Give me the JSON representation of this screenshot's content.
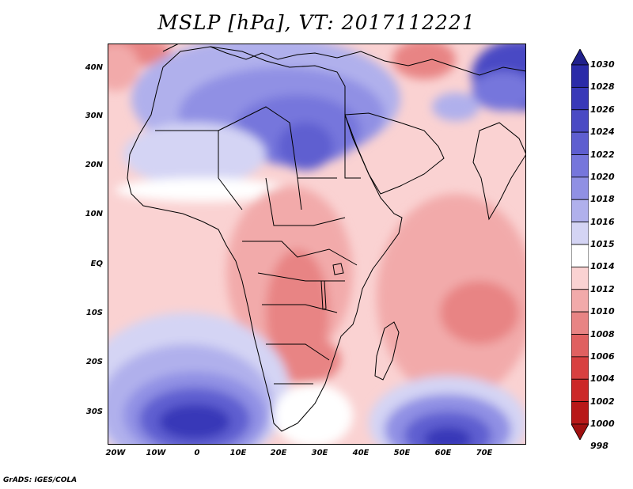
{
  "title": "MSLP [hPa], VT: 2017112221",
  "credit": "GrADS: IGES/COLA",
  "lat_labels": [
    "40N",
    "30N",
    "20N",
    "10N",
    "EQ",
    "10S",
    "20S",
    "30S"
  ],
  "lon_labels": [
    "20W",
    "10W",
    "0",
    "10E",
    "20E",
    "30E",
    "40E",
    "50E",
    "60E",
    "70E"
  ],
  "colorbar": {
    "levels": [
      "1030",
      "1028",
      "1026",
      "1024",
      "1022",
      "1020",
      "1018",
      "1016",
      "1015",
      "1014",
      "1012",
      "1010",
      "1008",
      "1006",
      "1004",
      "1002",
      "1000",
      "998"
    ],
    "colors": [
      "#20208c",
      "#2a2aa8",
      "#3838b8",
      "#4a4ac4",
      "#5e5ed0",
      "#7676dc",
      "#9090e4",
      "#b0b0ec",
      "#d4d4f4",
      "#ffffff",
      "#fad2d2",
      "#f2aaaa",
      "#e88484",
      "#e06060",
      "#d84040",
      "#cc2828",
      "#b81818",
      "#a01010"
    ]
  },
  "map_colors": {
    "ocean_base": "#fad2d2",
    "high_1": "#d4d4f4",
    "high_2": "#b0b0ec",
    "high_3": "#9090e4",
    "high_4": "#7676dc",
    "high_5": "#5e5ed0",
    "high_6": "#4a4ac4",
    "high_7": "#3838b8",
    "low_1": "#f2aaaa",
    "low_2": "#e88484",
    "low_3": "#e06060",
    "low_4": "#d84040",
    "neutral": "#ffffff"
  }
}
